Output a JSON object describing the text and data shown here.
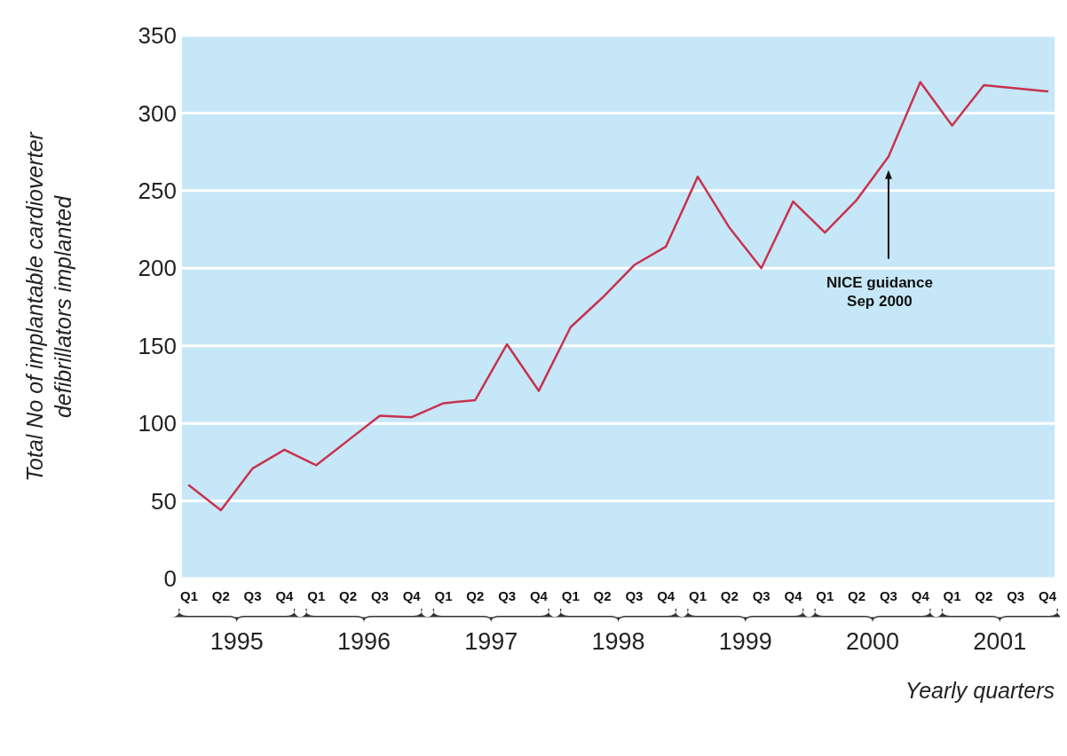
{
  "chart_data": {
    "type": "line",
    "ylabel": "Total No of implantable cardioverter defibrillators implanted",
    "xlabel": "Yearly quarters",
    "categories": [
      "Q1",
      "Q2",
      "Q3",
      "Q4",
      "Q1",
      "Q2",
      "Q3",
      "Q4",
      "Q1",
      "Q2",
      "Q3",
      "Q4",
      "Q1",
      "Q2",
      "Q3",
      "Q4",
      "Q1",
      "Q2",
      "Q3",
      "Q4",
      "Q1",
      "Q2",
      "Q3",
      "Q4",
      "Q1",
      "Q2",
      "Q3",
      "Q4"
    ],
    "series": [
      {
        "color": "#c8324e",
        "values": [
          60,
          44,
          71,
          83,
          73,
          89,
          105,
          104,
          113,
          115,
          151,
          121,
          162,
          181,
          202,
          214,
          259,
          226,
          200,
          243,
          223,
          244,
          272,
          320,
          292,
          318,
          316,
          314
        ]
      }
    ],
    "ylim": [
      0,
      350
    ],
    "yticks": [
      0,
      50,
      100,
      150,
      200,
      250,
      300,
      350
    ],
    "grid": "y",
    "marker": "none",
    "line_style": "solid",
    "annotations": [
      "NICE guidance Sep 2000",
      "1995",
      "1996",
      "1997",
      "1998",
      "1999",
      "2000",
      "2001"
    ]
  }
}
